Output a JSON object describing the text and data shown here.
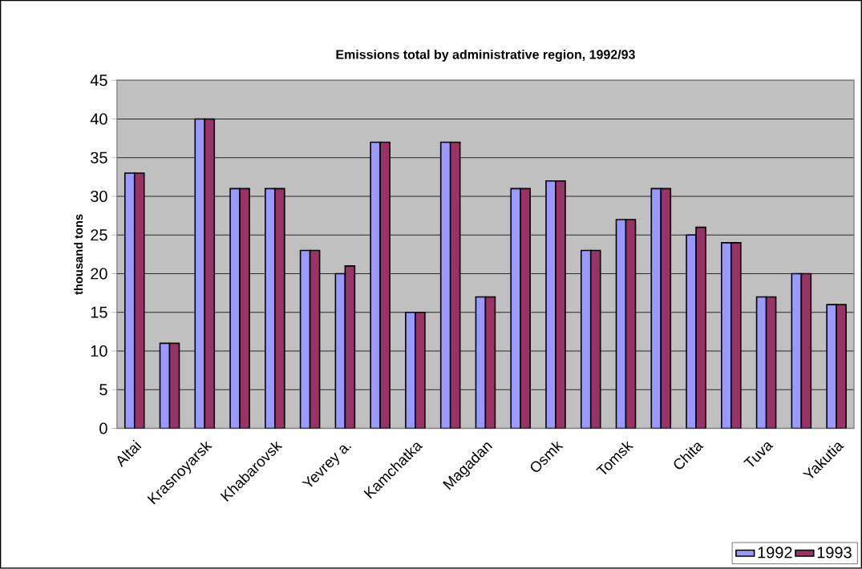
{
  "chart_data": {
    "type": "bar",
    "title": "Emissions total by administrative region, 1992/93",
    "ylabel": "thousand tons",
    "categories": [
      "Altai",
      null,
      "Krasnoyarsk",
      null,
      "Khabarovsk",
      null,
      "Yevrey a.",
      null,
      "Kamchatka",
      null,
      "Magadan",
      null,
      "Osmk",
      null,
      "Tomsk",
      null,
      "Chita",
      null,
      "Tuva",
      null,
      "Yakutia"
    ],
    "series": [
      {
        "name": "1992",
        "color": "#9999ff",
        "values": [
          33,
          11,
          40,
          31,
          31,
          23,
          20,
          37,
          15,
          37,
          17,
          31,
          32,
          23,
          27,
          31,
          25,
          24,
          17,
          20,
          16
        ]
      },
      {
        "name": "1993",
        "color": "#993366",
        "values": [
          33,
          11,
          40,
          31,
          31,
          23,
          21,
          37,
          15,
          37,
          17,
          31,
          32,
          23,
          27,
          31,
          26,
          24,
          17,
          20,
          16
        ]
      }
    ],
    "ylim": [
      0,
      45
    ],
    "yticks": [
      0,
      5,
      10,
      15,
      20,
      25,
      30,
      35,
      40,
      45
    ],
    "grid": "y",
    "legend": "bottom right"
  }
}
